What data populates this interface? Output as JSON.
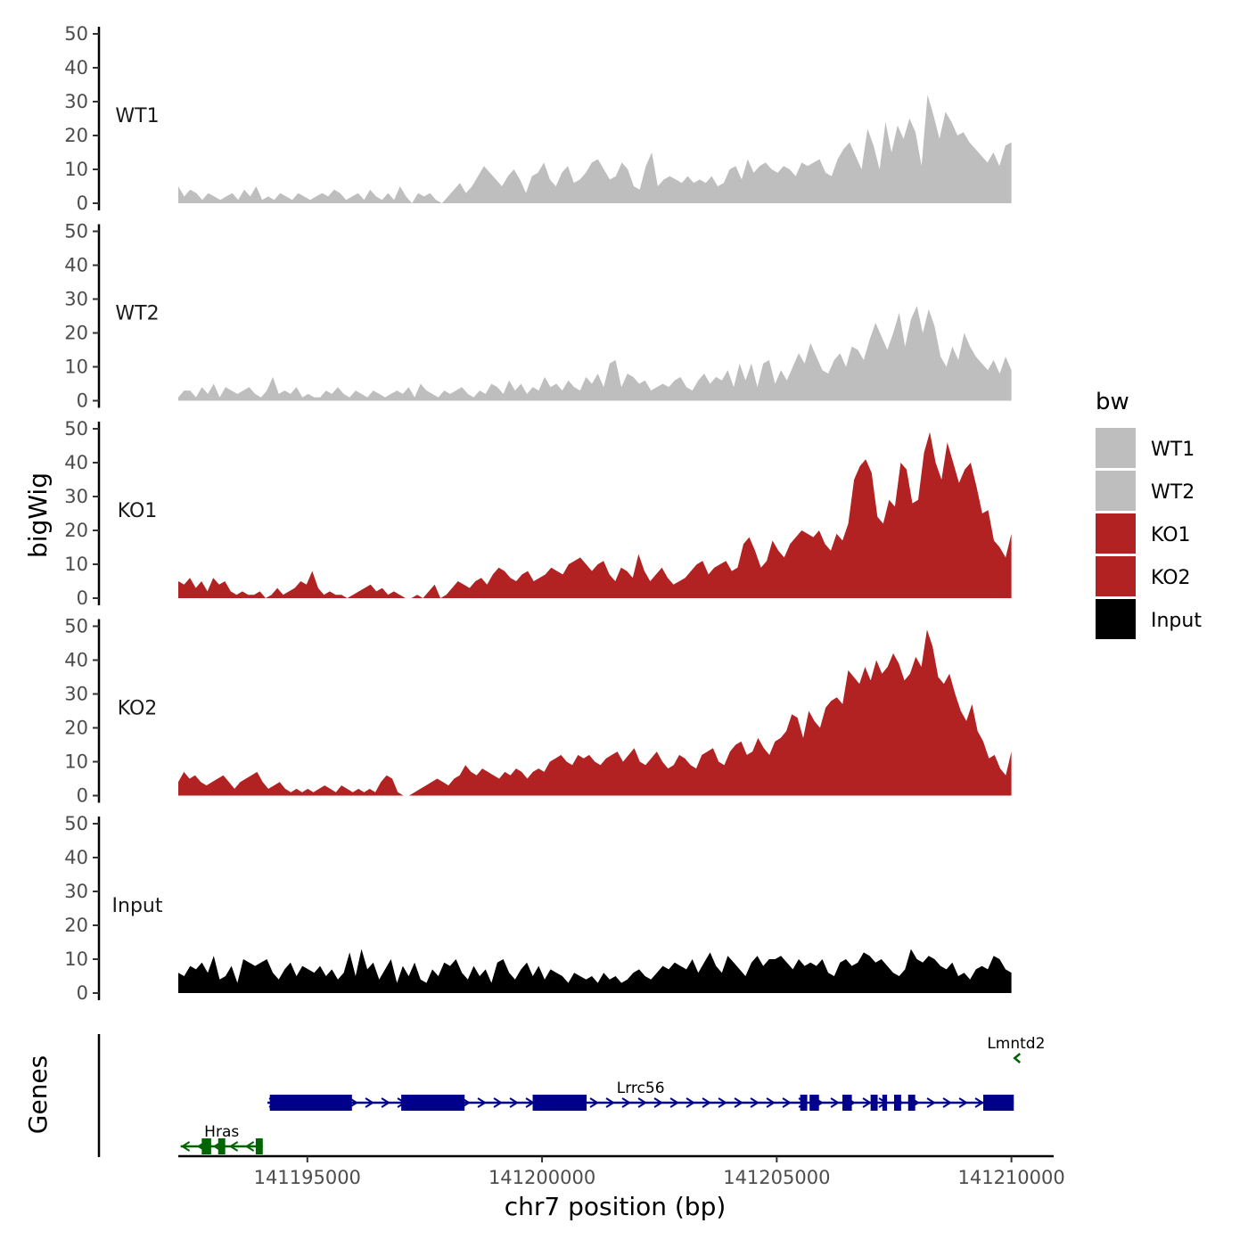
{
  "chart_data": {
    "type": "area",
    "title": "",
    "xlabel": "chr7 position (bp)",
    "ylabel": "bigWig",
    "genes_label": "Genes",
    "xlim": [
      141192250,
      141210900
    ],
    "ylim": [
      0,
      50
    ],
    "x_ticks": [
      141195000,
      141200000,
      141205000,
      141210000
    ],
    "x_tick_labels": [
      "141195000",
      "141200000",
      "141205000",
      "141210000"
    ],
    "y_ticks": [
      0,
      10,
      20,
      30,
      40,
      50
    ],
    "y_tick_labels": [
      "0",
      "10",
      "20",
      "30",
      "40",
      "50"
    ],
    "grid": false,
    "legend": {
      "title": "bw",
      "position": "right",
      "entries": [
        {
          "label": "WT1",
          "color": "#bebebe"
        },
        {
          "label": "WT2",
          "color": "#bebebe"
        },
        {
          "label": "KO1",
          "color": "#b22222"
        },
        {
          "label": "KO2",
          "color": "#b22222"
        },
        {
          "label": "Input",
          "color": "#000000"
        }
      ]
    },
    "series": [
      {
        "name": "WT1",
        "color": "#bebebe",
        "x_start": 141192250,
        "x_end": 141210000,
        "values": [
          5,
          2,
          4,
          3,
          1,
          3,
          2,
          1,
          2,
          3,
          1,
          4,
          2,
          5,
          1,
          2,
          1,
          3,
          2,
          1,
          3,
          2,
          1,
          2,
          3,
          2,
          4,
          3,
          1,
          2,
          3,
          1,
          4,
          2,
          1,
          3,
          1,
          5,
          2,
          0,
          3,
          2,
          3,
          1,
          0,
          2,
          4,
          6,
          3,
          5,
          8,
          11,
          9,
          7,
          5,
          8,
          10,
          7,
          3,
          8,
          9,
          12,
          7,
          5,
          9,
          11,
          6,
          7,
          9,
          12,
          13,
          10,
          7,
          8,
          12,
          10,
          5,
          4,
          11,
          15,
          5,
          7,
          8,
          7,
          6,
          8,
          6,
          7,
          6,
          8,
          5,
          6,
          10,
          11,
          7,
          13,
          9,
          11,
          12,
          10,
          9,
          11,
          10,
          8,
          12,
          11,
          12,
          13,
          9,
          8,
          13,
          16,
          18,
          14,
          10,
          22,
          17,
          10,
          24,
          15,
          23,
          19,
          25,
          21,
          11,
          32,
          26,
          19,
          27,
          24,
          20,
          21,
          18,
          16,
          14,
          12,
          15,
          11,
          17,
          18
        ]
      },
      {
        "name": "WT2",
        "color": "#bebebe",
        "x_start": 141192250,
        "x_end": 141210000,
        "values": [
          1,
          3,
          3,
          1,
          4,
          2,
          5,
          1,
          4,
          3,
          2,
          3,
          4,
          2,
          1,
          3,
          7,
          2,
          3,
          2,
          4,
          1,
          2,
          1,
          1,
          3,
          2,
          4,
          2,
          1,
          3,
          2,
          1,
          3,
          2,
          1,
          2,
          3,
          2,
          4,
          1,
          5,
          3,
          2,
          1,
          3,
          2,
          3,
          4,
          2,
          1,
          3,
          2,
          5,
          4,
          2,
          6,
          3,
          5,
          2,
          4,
          3,
          7,
          4,
          5,
          3,
          6,
          4,
          3,
          7,
          5,
          8,
          4,
          11,
          12,
          4,
          8,
          7,
          5,
          6,
          3,
          4,
          5,
          4,
          6,
          7,
          4,
          3,
          6,
          8,
          5,
          7,
          6,
          9,
          4,
          11,
          6,
          11,
          4,
          11,
          12,
          5,
          9,
          6,
          10,
          14,
          11,
          17,
          13,
          9,
          8,
          12,
          14,
          10,
          16,
          15,
          12,
          18,
          23,
          19,
          15,
          20,
          26,
          16,
          24,
          28,
          20,
          27,
          22,
          13,
          10,
          16,
          12,
          20,
          16,
          13,
          11,
          9,
          12,
          8,
          13,
          9
        ]
      },
      {
        "name": "KO1",
        "color": "#b22222",
        "x_start": 141192250,
        "x_end": 141210000,
        "values": [
          5,
          4,
          6,
          3,
          5,
          2,
          6,
          4,
          5,
          2,
          1,
          2,
          1,
          1,
          2,
          0,
          1,
          3,
          1,
          2,
          3,
          5,
          4,
          8,
          3,
          1,
          2,
          1,
          1,
          0,
          1,
          2,
          3,
          4,
          2,
          3,
          1,
          2,
          1,
          0,
          0,
          1,
          0,
          2,
          4,
          0,
          1,
          3,
          5,
          4,
          3,
          5,
          6,
          4,
          7,
          9,
          8,
          6,
          5,
          7,
          8,
          5,
          6,
          7,
          9,
          8,
          7,
          10,
          11,
          12,
          10,
          8,
          10,
          11,
          7,
          5,
          9,
          8,
          6,
          13,
          8,
          5,
          7,
          9,
          6,
          4,
          5,
          6,
          8,
          10,
          11,
          7,
          9,
          10,
          11,
          8,
          9,
          16,
          18,
          14,
          9,
          11,
          17,
          14,
          12,
          16,
          18,
          20,
          19,
          18,
          20,
          16,
          14,
          19,
          17,
          22,
          35,
          39,
          41,
          37,
          24,
          22,
          29,
          27,
          40,
          38,
          28,
          29,
          43,
          49,
          40,
          35,
          46,
          40,
          34,
          38,
          40,
          33,
          25,
          26,
          17,
          15,
          12,
          19
        ]
      },
      {
        "name": "KO2",
        "color": "#b22222",
        "x_start": 141192250,
        "x_end": 141210000,
        "values": [
          4,
          7,
          5,
          6,
          4,
          3,
          4,
          5,
          6,
          4,
          2,
          4,
          5,
          6,
          7,
          4,
          2,
          3,
          4,
          2,
          1,
          2,
          1,
          2,
          1,
          2,
          3,
          2,
          1,
          3,
          2,
          1,
          2,
          1,
          2,
          1,
          4,
          6,
          5,
          1,
          0,
          0,
          1,
          2,
          3,
          4,
          5,
          4,
          3,
          5,
          6,
          9,
          7,
          6,
          8,
          7,
          6,
          5,
          7,
          6,
          8,
          7,
          5,
          7,
          8,
          7,
          10,
          11,
          12,
          10,
          9,
          12,
          11,
          12,
          10,
          9,
          11,
          12,
          13,
          10,
          12,
          14,
          10,
          9,
          11,
          13,
          10,
          8,
          9,
          12,
          11,
          9,
          8,
          12,
          13,
          14,
          10,
          9,
          13,
          15,
          16,
          12,
          13,
          17,
          14,
          12,
          16,
          17,
          19,
          24,
          23,
          17,
          25,
          22,
          20,
          26,
          28,
          29,
          27,
          37,
          35,
          33,
          38,
          34,
          40,
          36,
          38,
          42,
          39,
          34,
          36,
          41,
          38,
          49,
          44,
          35,
          33,
          36,
          30,
          25,
          22,
          27,
          19,
          16,
          11,
          12,
          8,
          6,
          13
        ]
      },
      {
        "name": "Input",
        "color": "#000000",
        "x_start": 141192250,
        "x_end": 141210000,
        "values": [
          6,
          5,
          8,
          7,
          9,
          6,
          11,
          4,
          5,
          8,
          3,
          10,
          9,
          8,
          9,
          10,
          6,
          4,
          7,
          9,
          5,
          8,
          7,
          6,
          8,
          5,
          7,
          4,
          6,
          12,
          5,
          13,
          7,
          9,
          4,
          7,
          10,
          3,
          8,
          5,
          9,
          4,
          3,
          7,
          5,
          9,
          8,
          10,
          6,
          4,
          8,
          5,
          7,
          3,
          9,
          10,
          6,
          4,
          7,
          9,
          5,
          8,
          4,
          7,
          6,
          5,
          3,
          6,
          5,
          4,
          5,
          3,
          6,
          4,
          5,
          3,
          4,
          6,
          7,
          5,
          4,
          6,
          8,
          7,
          9,
          8,
          7,
          10,
          6,
          9,
          12,
          8,
          6,
          11,
          9,
          7,
          5,
          9,
          11,
          8,
          10,
          10,
          11,
          9,
          7,
          10,
          8,
          9,
          8,
          10,
          6,
          5,
          9,
          10,
          8,
          9,
          12,
          11,
          9,
          10,
          8,
          6,
          5,
          7,
          13,
          10,
          9,
          11,
          10,
          8,
          7,
          9,
          5,
          6,
          4,
          7,
          8,
          7,
          11,
          10,
          7,
          6
        ]
      }
    ],
    "genes": [
      {
        "name": "Hras",
        "strand": "-",
        "color": "#006400",
        "start": 141192300,
        "end": 141194050,
        "exons": [
          [
            141192750,
            141192950
          ],
          [
            141193100,
            141193250
          ],
          [
            141193900,
            141194050
          ]
        ]
      },
      {
        "name": "Lrrc56",
        "strand": "+",
        "color": "#00008b",
        "start": 141194150,
        "end": 141210050,
        "exons": [
          [
            141194200,
            141195950
          ],
          [
            141197000,
            141198350
          ],
          [
            141199800,
            141200950
          ],
          [
            141205500,
            141205650
          ],
          [
            141205700,
            141205900
          ],
          [
            141206400,
            141206600
          ],
          [
            141207000,
            141207150
          ],
          [
            141207250,
            141207350
          ],
          [
            141207500,
            141207650
          ],
          [
            141207800,
            141207950
          ],
          [
            141209400,
            141210050
          ]
        ]
      },
      {
        "name": "Lmntd2",
        "strand": "-",
        "color": "#006400",
        "start": 141210050,
        "end": 141210150,
        "exons": []
      }
    ]
  }
}
